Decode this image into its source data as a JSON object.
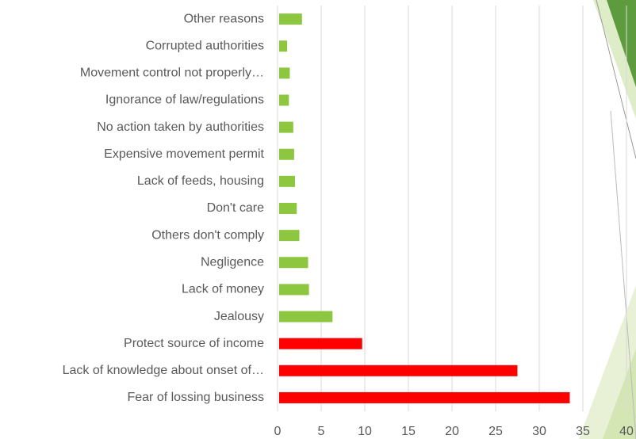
{
  "chart_data": {
    "type": "hbar",
    "categories": [
      "Other reasons",
      "Corrupted authorities",
      "Movement control not properly…",
      "Ignorance of law/regulations",
      "No action taken by authorities",
      "Expensive movement permit",
      "Lack of feeds, housing",
      "Don't care",
      "Others don't comply",
      "Negligence",
      "Lack of money",
      "Jealousy",
      "Protect source of income",
      "Lack of knowledge about onset of…",
      "Fear of lossing business"
    ],
    "values": [
      2.8,
      1.1,
      1.4,
      1.3,
      1.8,
      1.9,
      2.0,
      2.2,
      2.5,
      3.5,
      3.6,
      6.3,
      9.7,
      27.5,
      33.5
    ],
    "colors": [
      "#8dc63f",
      "#8dc63f",
      "#8dc63f",
      "#8dc63f",
      "#8dc63f",
      "#8dc63f",
      "#8dc63f",
      "#8dc63f",
      "#8dc63f",
      "#8dc63f",
      "#8dc63f",
      "#8dc63f",
      "#ff0000",
      "#ff0000",
      "#ff0000"
    ],
    "xlim": [
      0,
      40
    ],
    "xticks": [
      0,
      5,
      10,
      15,
      20,
      25,
      30,
      35,
      40
    ],
    "grid": true
  }
}
